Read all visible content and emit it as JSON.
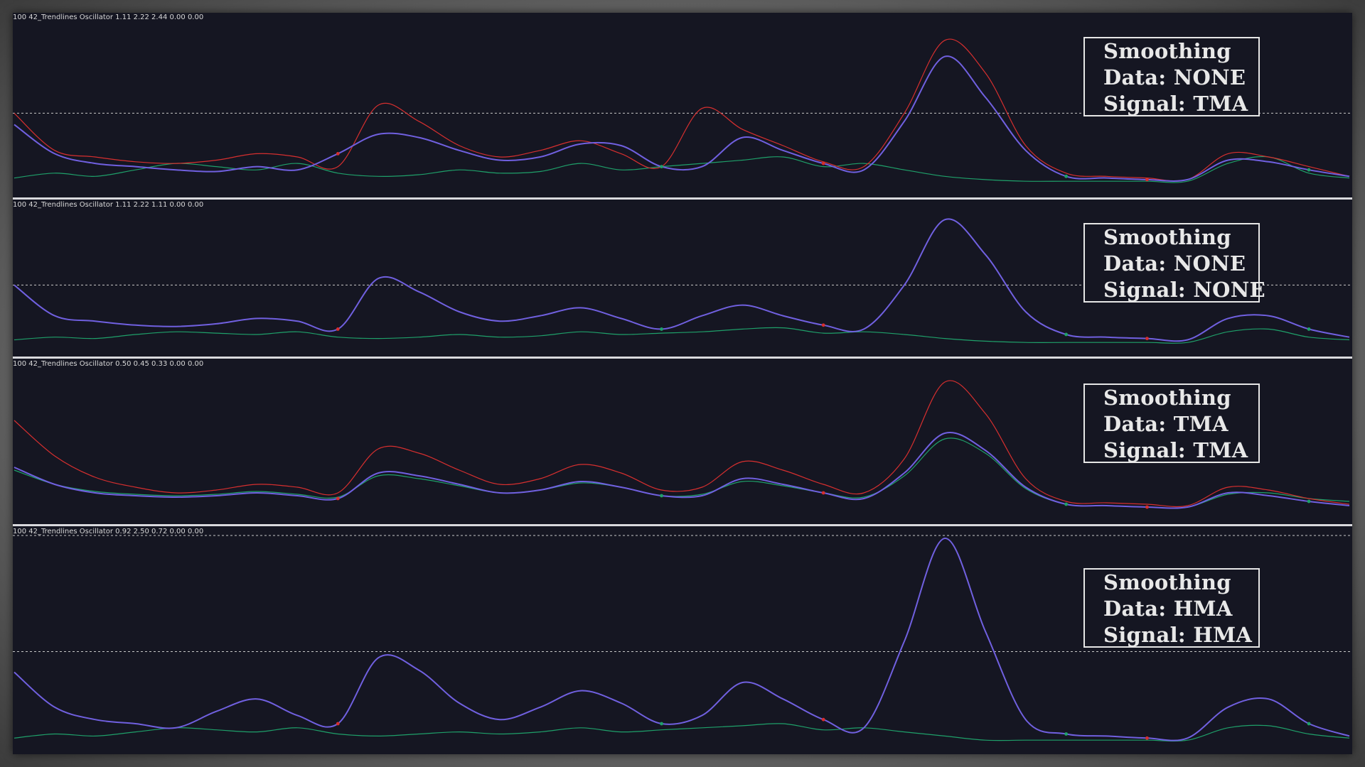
{
  "colors": {
    "background": "#151622",
    "data_line": "#d62f2f",
    "signal_line": "#7060e0",
    "base_line": "#1fa06a",
    "level_line": "#c8c8c8",
    "separator": "#d9d9dd"
  },
  "panels": [
    {
      "header": "100 42_Trendlines Oscillator 1.11 2.22 2.44 0.00 0.00",
      "labels": {
        "l1": "Smoothing",
        "l2": "Data: NONE",
        "l3": "Signal: TMA"
      }
    },
    {
      "header": "100 42_Trendlines Oscillator 1.11 2.22 1.11 0.00 0.00",
      "labels": {
        "l1": "Smoothing",
        "l2": "Data: NONE",
        "l3": "Signal: NONE"
      }
    },
    {
      "header": "100 42_Trendlines Oscillator 0.50 0.45 0.33 0.00 0.00",
      "labels": {
        "l1": "Smoothing",
        "l2": "Data: TMA",
        "l3": "Signal: TMA"
      }
    },
    {
      "header": "100 42_Trendlines Oscillator 0.92 2.50 0.72 0.00 0.00",
      "labels": {
        "l1": "Smoothing",
        "l2": "Data: HMA",
        "l3": "Signal: HMA"
      }
    }
  ],
  "chart_data": [
    {
      "type": "line",
      "smooth_data": "NONE",
      "smooth_signal": "TMA",
      "ylim": [
        0,
        100
      ],
      "level": 45,
      "grid": false,
      "legend": "none",
      "x": [
        0,
        3,
        6,
        9,
        12,
        15,
        18,
        21,
        24,
        27,
        30,
        33,
        36,
        39,
        42,
        45,
        48,
        51,
        54,
        57,
        60,
        63,
        66,
        69,
        72,
        75,
        78,
        81,
        84,
        87,
        90,
        93,
        96,
        99
      ],
      "series": [
        {
          "values": [
            45,
            22,
            18,
            15,
            14,
            16,
            20,
            18,
            12,
            50,
            40,
            25,
            18,
            22,
            28,
            20,
            12,
            48,
            35,
            25,
            15,
            12,
            45,
            90,
            70,
            25,
            8,
            6,
            5,
            4,
            20,
            18,
            12,
            6
          ]
        },
        {
          "values": [
            38,
            20,
            14,
            12,
            10,
            9,
            12,
            10,
            20,
            32,
            30,
            22,
            16,
            18,
            26,
            25,
            12,
            12,
            30,
            22,
            14,
            10,
            40,
            80,
            55,
            22,
            6,
            5,
            4,
            4,
            16,
            15,
            10,
            6
          ]
        },
        {
          "values": [
            5,
            8,
            6,
            10,
            14,
            12,
            10,
            14,
            8,
            6,
            7,
            10,
            8,
            9,
            14,
            10,
            12,
            14,
            16,
            18,
            12,
            14,
            10,
            6,
            4,
            3,
            3,
            3,
            3,
            3,
            14,
            18,
            8,
            5
          ]
        }
      ]
    },
    {
      "type": "line",
      "smooth_data": "NONE",
      "smooth_signal": "NONE",
      "ylim": [
        0,
        100
      ],
      "level": 45,
      "grid": false,
      "legend": "none",
      "x": [
        0,
        3,
        6,
        9,
        12,
        15,
        18,
        21,
        24,
        27,
        30,
        33,
        36,
        39,
        42,
        45,
        48,
        51,
        54,
        57,
        60,
        63,
        66,
        69,
        72,
        75,
        78,
        81,
        84,
        87,
        90,
        93,
        96,
        99
      ],
      "series": [
        {
          "values": [
            45,
            22,
            18,
            15,
            14,
            16,
            20,
            18,
            12,
            50,
            40,
            25,
            18,
            22,
            28,
            20,
            12,
            22,
            30,
            22,
            15,
            12,
            45,
            94,
            68,
            25,
            8,
            6,
            5,
            4,
            20,
            22,
            12,
            6
          ]
        },
        {
          "values": [
            45,
            22,
            18,
            15,
            14,
            16,
            20,
            18,
            12,
            50,
            40,
            25,
            18,
            22,
            28,
            20,
            12,
            22,
            30,
            22,
            15,
            12,
            45,
            94,
            68,
            25,
            8,
            6,
            5,
            4,
            20,
            22,
            12,
            6
          ]
        },
        {
          "values": [
            4,
            6,
            5,
            8,
            10,
            9,
            8,
            10,
            6,
            5,
            6,
            8,
            6,
            7,
            10,
            8,
            9,
            10,
            12,
            13,
            9,
            10,
            8,
            5,
            3,
            2,
            2,
            2,
            2,
            2,
            10,
            12,
            6,
            4
          ]
        }
      ]
    },
    {
      "type": "line",
      "smooth_data": "TMA",
      "smooth_signal": "TMA",
      "ylim": [
        0,
        100
      ],
      "grid": false,
      "legend": "none",
      "x": [
        0,
        3,
        6,
        9,
        12,
        15,
        18,
        21,
        24,
        27,
        30,
        33,
        36,
        39,
        42,
        45,
        48,
        51,
        54,
        57,
        60,
        63,
        66,
        69,
        72,
        75,
        78,
        81,
        84,
        87,
        90,
        93,
        96,
        99
      ],
      "series": [
        {
          "values": [
            65,
            40,
            25,
            18,
            14,
            16,
            20,
            18,
            14,
            45,
            42,
            30,
            20,
            24,
            34,
            28,
            16,
            18,
            36,
            30,
            20,
            14,
            38,
            92,
            70,
            24,
            8,
            7,
            6,
            5,
            18,
            16,
            10,
            6
          ]
        },
        {
          "values": [
            32,
            20,
            14,
            12,
            11,
            12,
            14,
            12,
            10,
            28,
            26,
            20,
            14,
            16,
            22,
            18,
            12,
            12,
            24,
            20,
            14,
            10,
            28,
            56,
            44,
            18,
            6,
            5,
            4,
            4,
            14,
            12,
            8,
            5
          ]
        },
        {
          "values": [
            30,
            20,
            15,
            13,
            12,
            13,
            15,
            13,
            11,
            26,
            24,
            19,
            14,
            16,
            21,
            18,
            12,
            13,
            22,
            19,
            14,
            11,
            26,
            52,
            42,
            17,
            6,
            5,
            4,
            4,
            13,
            14,
            10,
            8
          ]
        }
      ]
    },
    {
      "type": "line",
      "smooth_data": "HMA",
      "smooth_signal": "HMA",
      "ylim": [
        0,
        100
      ],
      "level": 45,
      "grid": false,
      "legend": "none",
      "x": [
        0,
        3,
        6,
        9,
        12,
        15,
        18,
        21,
        24,
        27,
        30,
        33,
        36,
        39,
        42,
        45,
        48,
        51,
        54,
        57,
        60,
        63,
        66,
        69,
        72,
        75,
        78,
        81,
        84,
        87,
        90,
        93,
        96,
        99
      ],
      "series": [
        {
          "values": [
            35,
            18,
            12,
            10,
            8,
            16,
            22,
            14,
            10,
            42,
            36,
            20,
            12,
            18,
            26,
            20,
            10,
            14,
            30,
            22,
            12,
            8,
            50,
            100,
            55,
            12,
            5,
            4,
            3,
            3,
            18,
            22,
            10,
            4
          ]
        },
        {
          "values": [
            35,
            18,
            12,
            10,
            8,
            16,
            22,
            14,
            10,
            42,
            36,
            20,
            12,
            18,
            26,
            20,
            10,
            14,
            30,
            22,
            12,
            8,
            50,
            100,
            55,
            12,
            5,
            4,
            3,
            3,
            18,
            22,
            10,
            4
          ]
        },
        {
          "values": [
            3,
            5,
            4,
            6,
            8,
            7,
            6,
            8,
            5,
            4,
            5,
            6,
            5,
            6,
            8,
            6,
            7,
            8,
            9,
            10,
            7,
            8,
            6,
            4,
            2,
            2,
            2,
            2,
            2,
            2,
            8,
            9,
            5,
            3
          ]
        }
      ]
    }
  ]
}
